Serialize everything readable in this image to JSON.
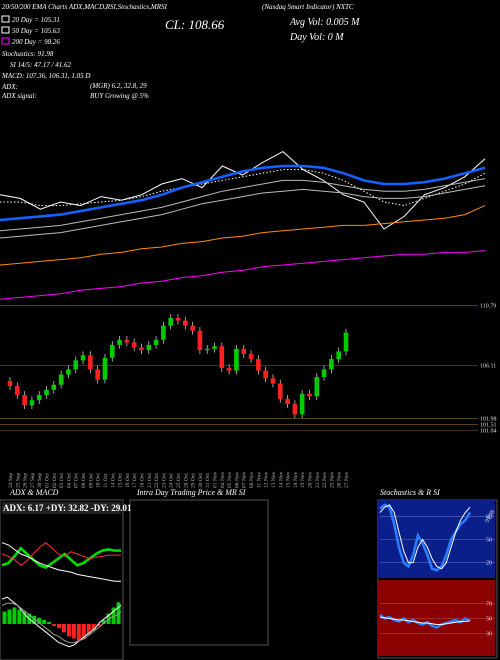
{
  "header": {
    "title_left": "20/50/200 EMA Charts ADX,MACD,RSI,Stochastics,MRSI",
    "title_right": "(Nasdaq Smart Indicator) NXTC",
    "legend": [
      {
        "label": "20 Day = 105.31",
        "color": "#ffffff"
      },
      {
        "label": "50 Day = 105.63",
        "color": "#ffffff"
      },
      {
        "label": "200 Day = 98.26",
        "color": "#ff00ff"
      }
    ],
    "close": "CL: 108.66",
    "avg_vol": "Avg Vol: 0.005 M",
    "day_vol": "Day Vol: 0 M",
    "stats": [
      "Stochastics: 91.98",
      "SI 14/5: 47.17 / 41.62",
      "MACD: 107.36, 106.31, 1.05 D"
    ],
    "adx": "ADX:",
    "adx_value": "(MGR) 6.2, 32.8, 29",
    "adx_signal": "ADX signal:",
    "signal_value": "BUY Growing @ 5%"
  },
  "intraday_panel": {
    "title": "Intra Day Trading Price & MR SI"
  },
  "chart_data": [
    {
      "type": "line",
      "ylim": [
        0,
        100
      ],
      "series": [
        {
          "color": "#ffffff",
          "line_style": "solid",
          "values": [
            64,
            62,
            56,
            60,
            58,
            63,
            61,
            64,
            70,
            73,
            68,
            80,
            75,
            82,
            88,
            78,
            72,
            64,
            60,
            45,
            52,
            64,
            68,
            74,
            84
          ]
        },
        {
          "color": "#ffffff",
          "line_style": "dotted",
          "values": [
            60,
            60,
            58,
            58,
            59,
            60,
            61,
            63,
            66,
            68,
            70,
            72,
            74,
            76,
            78,
            78,
            76,
            72,
            66,
            60,
            58,
            62,
            66,
            70,
            76
          ]
        },
        {
          "color": "#1560ff",
          "line_style": "thick",
          "values": [
            50,
            51,
            52,
            53,
            55,
            57,
            59,
            61,
            64,
            68,
            71,
            74,
            77,
            79,
            80,
            80,
            79,
            76,
            72,
            70,
            70,
            71,
            73,
            76,
            79
          ]
        },
        {
          "color": "#bbbbbb",
          "line_style": "solid",
          "values": [
            44,
            45,
            46,
            47,
            49,
            51,
            53,
            55,
            57,
            60,
            63,
            66,
            68,
            70,
            72,
            72,
            71,
            69,
            67,
            66,
            66,
            67,
            69,
            71,
            73
          ]
        },
        {
          "color": "#bbbbbb",
          "line_style": "solid",
          "values": [
            40,
            41,
            42,
            43,
            45,
            47,
            49,
            51,
            53,
            56,
            59,
            61,
            63,
            65,
            66,
            67,
            66,
            65,
            63,
            62,
            62,
            63,
            65,
            67,
            69
          ]
        },
        {
          "color": "#ff8c00",
          "line_style": "solid",
          "values": [
            25,
            26,
            27,
            28,
            29,
            31,
            32,
            34,
            35,
            37,
            38,
            40,
            41,
            43,
            44,
            45,
            46,
            47,
            47,
            48,
            49,
            50,
            51,
            53,
            58
          ]
        },
        {
          "color": "#ff00ff",
          "line_style": "solid",
          "values": [
            6,
            7,
            8,
            9,
            11,
            12,
            13,
            15,
            16,
            18,
            19,
            21,
            22,
            24,
            25,
            26,
            27,
            28,
            29,
            30,
            31,
            31,
            32,
            32,
            33
          ]
        }
      ]
    },
    {
      "type": "candlestick",
      "up_color": "#00cc00",
      "down_color": "#ff2020",
      "x": [
        "24 Sep",
        "25 Sep",
        "26 Sep",
        "27 Sep",
        "30 Sep",
        "01 Oct",
        "02 Oct",
        "03 Oct",
        "04 Oct",
        "07 Oct",
        "08 Oct",
        "09 Oct",
        "10 Oct",
        "11 Oct",
        "14 Oct",
        "15 Oct",
        "16 Oct",
        "17 Oct",
        "18 Oct",
        "21 Oct",
        "22 Oct",
        "23 Oct",
        "24 Oct",
        "25 Oct",
        "28 Oct",
        "29 Oct",
        "30 Oct",
        "31 Oct",
        "01 Nov",
        "04 Nov",
        "05 Nov",
        "06 Nov",
        "07 Nov",
        "08 Nov",
        "11 Nov",
        "12 Nov",
        "13 Nov",
        "14 Nov",
        "15 Nov",
        "18 Nov",
        "19 Nov",
        "20 Nov",
        "21 Nov",
        "22 Nov",
        "25 Nov",
        "26 Nov",
        "27 Nov"
      ],
      "open": [
        104.9,
        104.5,
        103.8,
        103.0,
        103.4,
        103.8,
        104.2,
        104.6,
        105.4,
        105.8,
        106.5,
        106.9,
        105.8,
        105.0,
        106.7,
        107.7,
        108.1,
        107.9,
        107.5,
        107.3,
        107.7,
        108.1,
        109.2,
        109.8,
        109.6,
        109.2,
        108.8,
        107.3,
        107.4,
        107.6,
        105.9,
        105.7,
        107.4,
        107.0,
        106.6,
        105.7,
        105.1,
        104.7,
        103.5,
        103.1,
        102.3,
        103.9,
        103.7,
        105.2,
        105.8,
        106.6,
        107.2
      ],
      "high": [
        105.2,
        104.8,
        104.1,
        103.7,
        104.1,
        104.5,
        104.9,
        105.7,
        106.1,
        106.8,
        107.2,
        107.2,
        106.1,
        107.0,
        108.0,
        108.4,
        108.4,
        108.2,
        107.8,
        108.0,
        108.4,
        109.5,
        110.1,
        110.1,
        109.9,
        109.5,
        109.1,
        107.7,
        107.9,
        107.9,
        106.2,
        107.7,
        107.7,
        107.3,
        106.9,
        106.0,
        105.4,
        105.0,
        103.8,
        103.4,
        104.2,
        104.2,
        105.5,
        106.1,
        106.9,
        107.5,
        108.96
      ],
      "low": [
        104.2,
        103.5,
        102.7,
        102.7,
        103.1,
        103.5,
        103.9,
        104.3,
        105.1,
        105.5,
        106.2,
        105.5,
        104.7,
        104.7,
        106.4,
        107.4,
        107.6,
        107.2,
        107.0,
        107.0,
        107.4,
        107.8,
        108.9,
        109.3,
        108.9,
        108.5,
        107.0,
        107.0,
        107.1,
        105.6,
        105.4,
        105.4,
        106.7,
        106.3,
        105.4,
        104.8,
        104.4,
        103.2,
        102.8,
        102.0,
        102.0,
        103.4,
        103.4,
        104.9,
        105.5,
        106.3,
        106.9
      ],
      "close": [
        104.5,
        103.8,
        103.0,
        103.4,
        103.8,
        104.2,
        104.6,
        105.4,
        105.8,
        106.5,
        106.9,
        105.8,
        105.0,
        106.7,
        107.7,
        108.1,
        107.9,
        107.5,
        107.3,
        107.7,
        108.1,
        109.2,
        109.8,
        109.6,
        109.2,
        108.8,
        107.3,
        107.4,
        107.6,
        105.9,
        105.7,
        107.4,
        107.0,
        106.6,
        105.7,
        105.1,
        104.7,
        103.5,
        103.1,
        102.3,
        103.9,
        103.7,
        105.2,
        105.8,
        106.6,
        107.2,
        108.66
      ],
      "ylim": [
        100.3,
        111.2
      ],
      "yticks": [
        110.79,
        106.11,
        101.98,
        101.51,
        101.04
      ]
    },
    {
      "type": "line",
      "title": "ADX & MACD",
      "subtitle": "ADX: 6.17 +DY: 32.82 -DY: 29.01",
      "ylim": [
        0,
        60
      ],
      "series": [
        {
          "color": "#00dd00",
          "line_style": "thick",
          "values": [
            20,
            22,
            28,
            35,
            30,
            25,
            20,
            18,
            22,
            26,
            30,
            25,
            20,
            22,
            26,
            30,
            33,
            34,
            33,
            33
          ]
        },
        {
          "color": "#ff3030",
          "line_style": "solid",
          "values": [
            30,
            28,
            25,
            20,
            24,
            30,
            36,
            40,
            35,
            30,
            28,
            32,
            30,
            28,
            26,
            27,
            28,
            29,
            29,
            29
          ]
        },
        {
          "color": "#ffffff",
          "line_style": "solid",
          "values": [
            40,
            38,
            34,
            30,
            28,
            25,
            22,
            20,
            18,
            16,
            15,
            14,
            12,
            11,
            10,
            9,
            8,
            7,
            6,
            6
          ]
        }
      ]
    },
    {
      "type": "macd",
      "ylim": [
        -1.5,
        1.5
      ],
      "up_color": "#00cc00",
      "down_color": "#ff2020",
      "histogram": [
        0.6,
        0.7,
        0.8,
        0.7,
        0.6,
        0.5,
        0.4,
        0.3,
        0.2,
        0.1,
        -0.1,
        -0.2,
        -0.4,
        -0.6,
        -0.7,
        -0.8,
        -0.7,
        -0.5,
        -0.3,
        -0.1,
        0.2,
        0.5,
        0.8,
        1.05
      ],
      "series": [
        {
          "color": "#ffffff",
          "line_style": "solid",
          "values": [
            1.2,
            1.3,
            1.1,
            0.9,
            0.6,
            0.3,
            0.1,
            -0.1,
            -0.3,
            -0.5,
            -0.7,
            -0.9,
            -1.0,
            -1.1,
            -1.0,
            -0.8,
            -0.6,
            -0.4,
            -0.2,
            0.1,
            0.3,
            0.5,
            0.7,
            0.9
          ]
        },
        {
          "color": "#999999",
          "line_style": "solid",
          "values": [
            0.9,
            1.0,
            1.0,
            0.9,
            0.7,
            0.5,
            0.3,
            0.1,
            -0.1,
            -0.3,
            -0.5,
            -0.6,
            -0.8,
            -0.9,
            -0.9,
            -0.8,
            -0.7,
            -0.5,
            -0.3,
            -0.1,
            0.1,
            0.3,
            0.4,
            0.6
          ]
        }
      ]
    },
    {
      "type": "line",
      "title": "Stochastics & R SI",
      "annotation": "91.98",
      "background": "#0b1f8a",
      "ylim": [
        0,
        100
      ],
      "yticks": [
        80,
        50,
        20
      ],
      "series": [
        {
          "color": "#2b7bff",
          "line_style": "thick",
          "values": [
            90,
            95,
            92,
            70,
            40,
            20,
            15,
            30,
            55,
            45,
            30,
            12,
            10,
            15,
            30,
            50,
            60,
            70,
            75,
            85
          ]
        },
        {
          "color": "#ffffff",
          "line_style": "solid",
          "values": [
            85,
            92,
            95,
            85,
            60,
            35,
            20,
            20,
            40,
            50,
            40,
            25,
            15,
            12,
            20,
            40,
            60,
            75,
            85,
            92
          ]
        }
      ]
    },
    {
      "type": "line",
      "background": "#8b0000",
      "ylim": [
        0,
        100
      ],
      "yticks": [
        70,
        50,
        30
      ],
      "series": [
        {
          "color": "#2b7bff",
          "line_style": "thick",
          "values": [
            55,
            50,
            52,
            48,
            46,
            50,
            45,
            48,
            44,
            42,
            45,
            40,
            38,
            42,
            44,
            46,
            48,
            45,
            50,
            47
          ]
        },
        {
          "color": "#ffffff",
          "line_style": "solid",
          "values": [
            52,
            51,
            50,
            49,
            48,
            48,
            47,
            46,
            45,
            44,
            44,
            43,
            42,
            42,
            43,
            44,
            45,
            46,
            46,
            47
          ]
        }
      ]
    }
  ]
}
